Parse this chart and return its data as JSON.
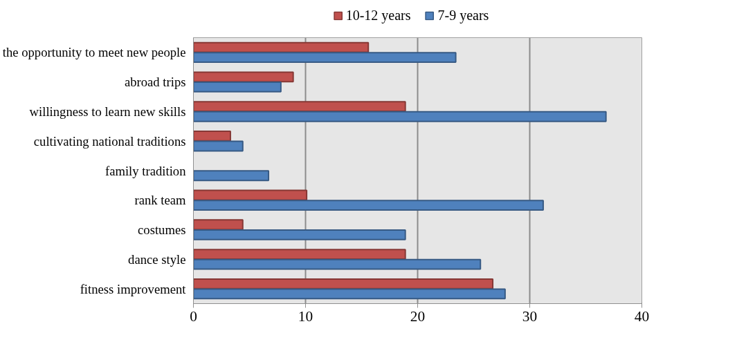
{
  "chart_data": {
    "type": "bar",
    "orientation": "horizontal",
    "categories": [
      "the opportunity to meet new people",
      "abroad trips",
      "willingness to learn new skills",
      "cultivating national traditions",
      "family tradition",
      "rank team",
      "costumes",
      "dance style",
      "fitness improvement"
    ],
    "series": [
      {
        "name": "10-12 years",
        "color": "#c0504d",
        "values": [
          15.6,
          8.9,
          18.9,
          3.3,
          null,
          10.1,
          4.4,
          18.9,
          26.7
        ]
      },
      {
        "name": "7-9 years",
        "color": "#4f81bd",
        "values": [
          23.4,
          7.8,
          36.8,
          4.4,
          6.7,
          31.2,
          18.9,
          25.6,
          27.8
        ]
      }
    ],
    "xlim": [
      0,
      40
    ],
    "xticks": [
      0,
      10,
      20,
      30,
      40
    ],
    "grid": "x",
    "legend": "top"
  }
}
